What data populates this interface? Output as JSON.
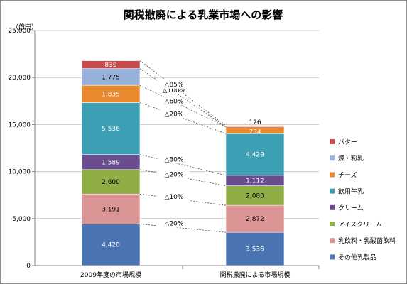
{
  "chart_data": {
    "type": "bar",
    "stacked": true,
    "title": "関税撤廃による乳業市場への影響",
    "ylabel": "（億円）",
    "ylim": [
      0,
      25000
    ],
    "yticks": [
      "0",
      "5,000",
      "10,000",
      "15,000",
      "20,000",
      "25,000"
    ],
    "ytick_values": [
      0,
      5000,
      10000,
      15000,
      20000,
      25000
    ],
    "grid": true,
    "legend_position": "right",
    "categories": [
      "2009年度の市場規模",
      "関税撤廃による市場規模"
    ],
    "series": [
      {
        "name": "その他乳製品",
        "color": "#4a74b2",
        "values": [
          4420,
          3536
        ],
        "labels": [
          "4,420",
          "3,536"
        ]
      },
      {
        "name": "乳飲料・乳酸菌飲料",
        "color": "#dc9595",
        "values": [
          3191,
          2872
        ],
        "labels": [
          "3,191",
          "2,872"
        ]
      },
      {
        "name": "アイスクリーム",
        "color": "#8ead45",
        "values": [
          2600,
          2080
        ],
        "labels": [
          "2,600",
          "2,080"
        ]
      },
      {
        "name": "クリーム",
        "color": "#6a4d8f",
        "values": [
          1589,
          1112
        ],
        "labels": [
          "1,589",
          "1,112"
        ]
      },
      {
        "name": "飲用牛乳",
        "color": "#3c9fb4",
        "values": [
          5536,
          4429
        ],
        "labels": [
          "5,536",
          "4,429"
        ]
      },
      {
        "name": "チーズ",
        "color": "#e8892f",
        "values": [
          1835,
          734
        ],
        "labels": [
          "1,835",
          "734"
        ]
      },
      {
        "name": "煉・粉乳",
        "color": "#96b1da",
        "values": [
          1775,
          0
        ],
        "labels": [
          "1,775",
          ""
        ]
      },
      {
        "name": "バター",
        "color": "#c84b4b",
        "values": [
          839,
          126
        ],
        "labels": [
          "839",
          "126"
        ]
      }
    ],
    "annotations": [
      "△20%",
      "△10%",
      "△20%",
      "△30%",
      "△20%",
      "△60%",
      "△100%",
      "△85%"
    ]
  }
}
